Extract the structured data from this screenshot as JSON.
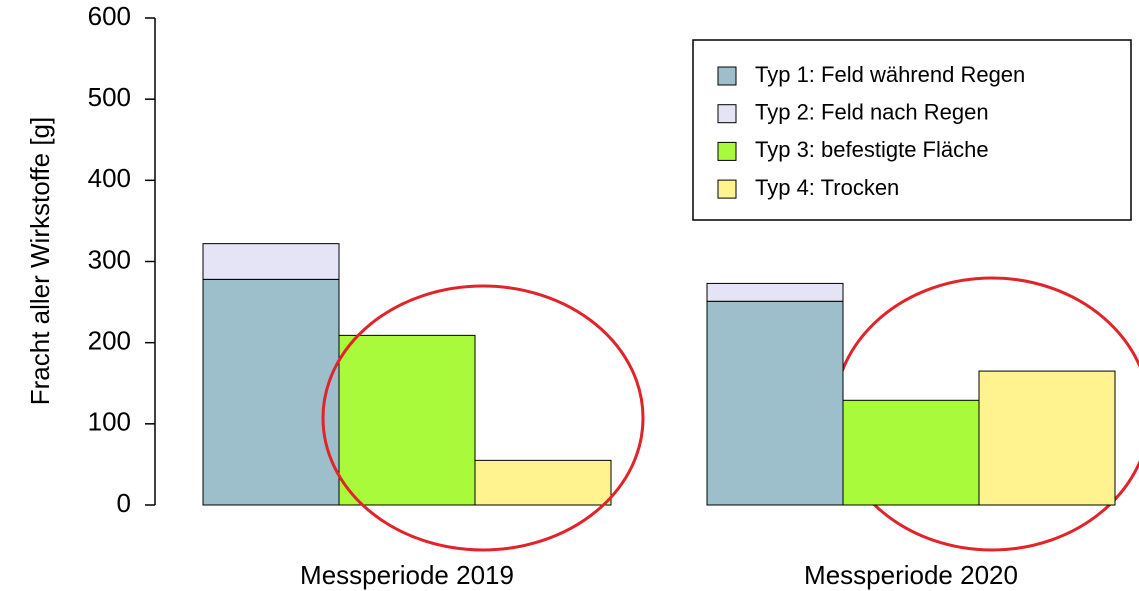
{
  "chart_data": {
    "type": "bar",
    "categories": [
      "Messperiode 2019",
      "Messperiode 2020"
    ],
    "ylabel": "Fracht aller Wirkstoffe [g]",
    "ylim": [
      0,
      600
    ],
    "yticks": [
      0,
      100,
      200,
      300,
      400,
      500,
      600
    ],
    "series": [
      {
        "name": "Typ 1: Feld während Regen",
        "color": "#9dbfcc",
        "values": [
          278,
          251
        ]
      },
      {
        "name": "Typ 2: Feld nach Regen",
        "color": "#e4e4f6",
        "values": [
          44,
          22
        ]
      },
      {
        "name": "Typ 3: befestigte Fläche",
        "color": "#a8fa3a",
        "values": [
          209,
          129
        ]
      },
      {
        "name": "Typ 4: Trocken",
        "color": "#fef38e",
        "values": [
          55,
          165
        ]
      }
    ],
    "legend": "upper right"
  }
}
